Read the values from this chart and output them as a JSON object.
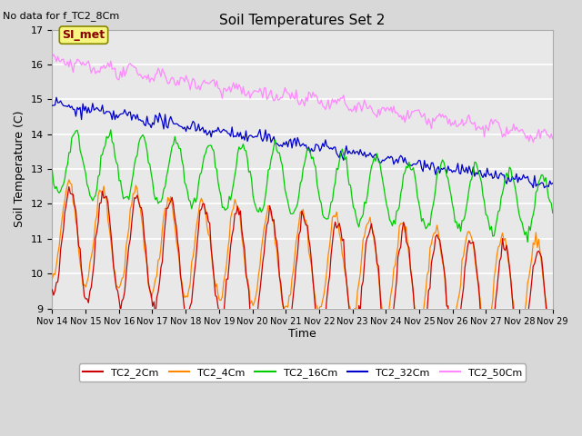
{
  "title": "Soil Temperatures Set 2",
  "subtitle": "No data for f_TC2_8Cm",
  "xlabel": "Time",
  "ylabel": "Soil Temperature (C)",
  "ylim": [
    9.0,
    17.0
  ],
  "yticks": [
    9.0,
    10.0,
    11.0,
    12.0,
    13.0,
    14.0,
    15.0,
    16.0,
    17.0
  ],
  "x_tick_labels": [
    "Nov 14",
    "Nov 15",
    "Nov 16",
    "Nov 17",
    "Nov 18",
    "Nov 19",
    "Nov 20",
    "Nov 21",
    "Nov 22",
    "Nov 23",
    "Nov 24",
    "Nov 25",
    "Nov 26",
    "Nov 27",
    "Nov 28",
    "Nov 29"
  ],
  "fig_bg_color": "#d8d8d8",
  "plot_bg_color": "#e8e8e8",
  "series": [
    {
      "label": "TC2_2Cm",
      "color": "#cc0000"
    },
    {
      "label": "TC2_4Cm",
      "color": "#ff8800"
    },
    {
      "label": "TC2_16Cm",
      "color": "#00cc00"
    },
    {
      "label": "TC2_32Cm",
      "color": "#0000cc"
    },
    {
      "label": "TC2_50Cm",
      "color": "#ff88ff"
    }
  ],
  "annotation_text": "SI_met",
  "seed": 42
}
